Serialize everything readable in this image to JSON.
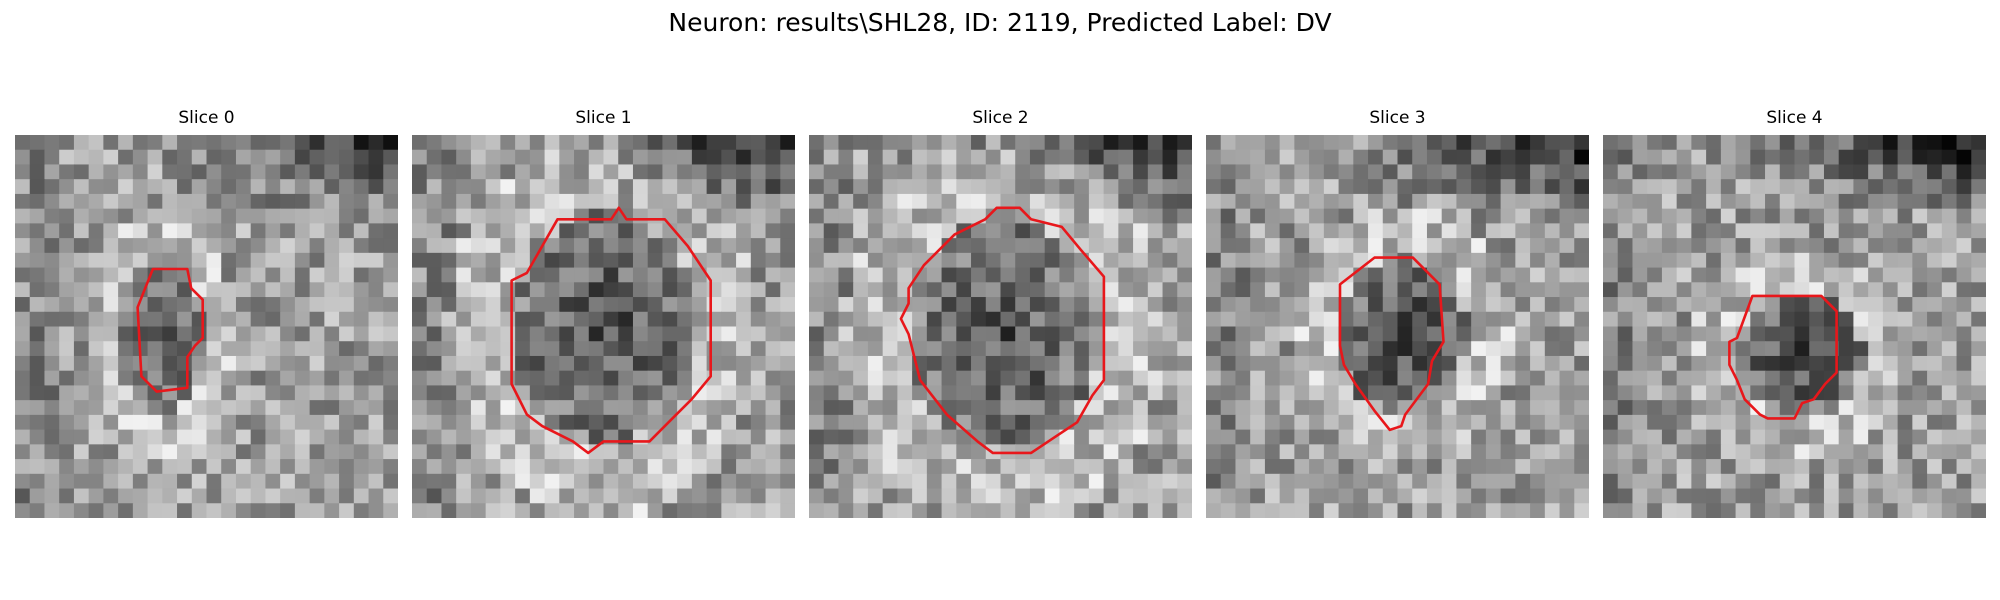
{
  "figure": {
    "title": "Neuron: results\\SHL28, ID: 2119, Predicted Label: DV"
  },
  "panels": [
    {
      "title": "Slice 0",
      "contour_color": "#e8171b",
      "icon": "grayscale-neuron-patch"
    },
    {
      "title": "Slice 1",
      "contour_color": "#e8171b",
      "icon": "grayscale-neuron-patch"
    },
    {
      "title": "Slice 2",
      "contour_color": "#e8171b",
      "icon": "grayscale-neuron-patch"
    },
    {
      "title": "Slice 3",
      "contour_color": "#e8171b",
      "icon": "grayscale-neuron-patch"
    },
    {
      "title": "Slice 4",
      "contour_color": "#e8171b",
      "icon": "grayscale-neuron-patch"
    }
  ]
}
